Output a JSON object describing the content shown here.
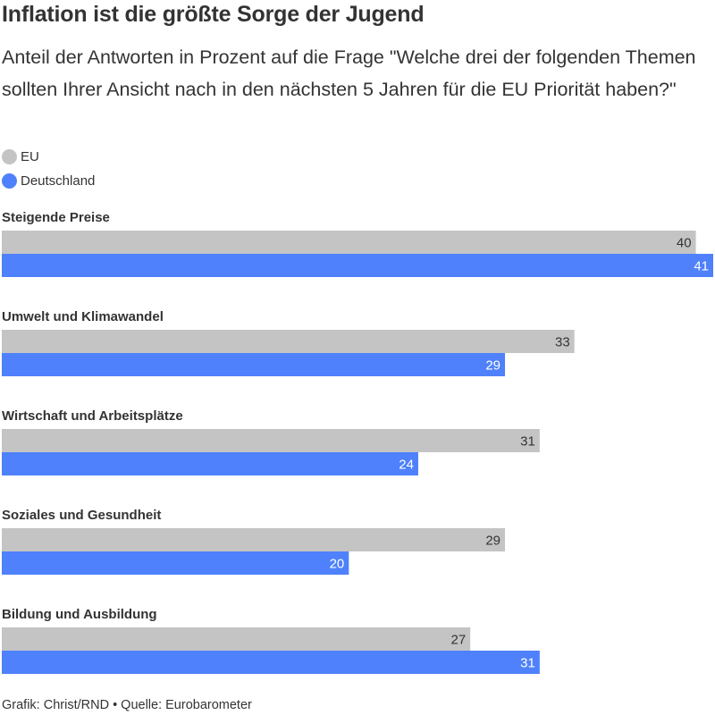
{
  "title": "Inflation ist die größte Sorge der Jugend",
  "subtitle": "Anteil der Antworten in Prozent auf die Frage \"Welche drei der folgenden Themen sollten Ihrer Ansicht nach in den nächsten 5 Jahren für die EU Priorität haben?\"",
  "footer": "Grafik: Christ/RND • Quelle: Eurobarometer",
  "colors": {
    "eu": "#c4c4c4",
    "deutschland": "#4e81fb",
    "eu_text": "#333333",
    "deutschland_text": "#ffffff"
  },
  "chart_data": {
    "type": "bar",
    "orientation": "horizontal",
    "categories": [
      "Steigende Preise",
      "Umwelt und Klimawandel",
      "Wirtschaft und Arbeitsplätze",
      "Soziales und Gesundheit",
      "Bildung und Ausbildung"
    ],
    "series": [
      {
        "name": "EU",
        "values": [
          40,
          33,
          31,
          29,
          27
        ]
      },
      {
        "name": "Deutschland",
        "values": [
          41,
          29,
          24,
          20,
          31
        ]
      }
    ],
    "xlim": [
      0,
      41
    ],
    "legend": "top-left",
    "grid": false
  }
}
